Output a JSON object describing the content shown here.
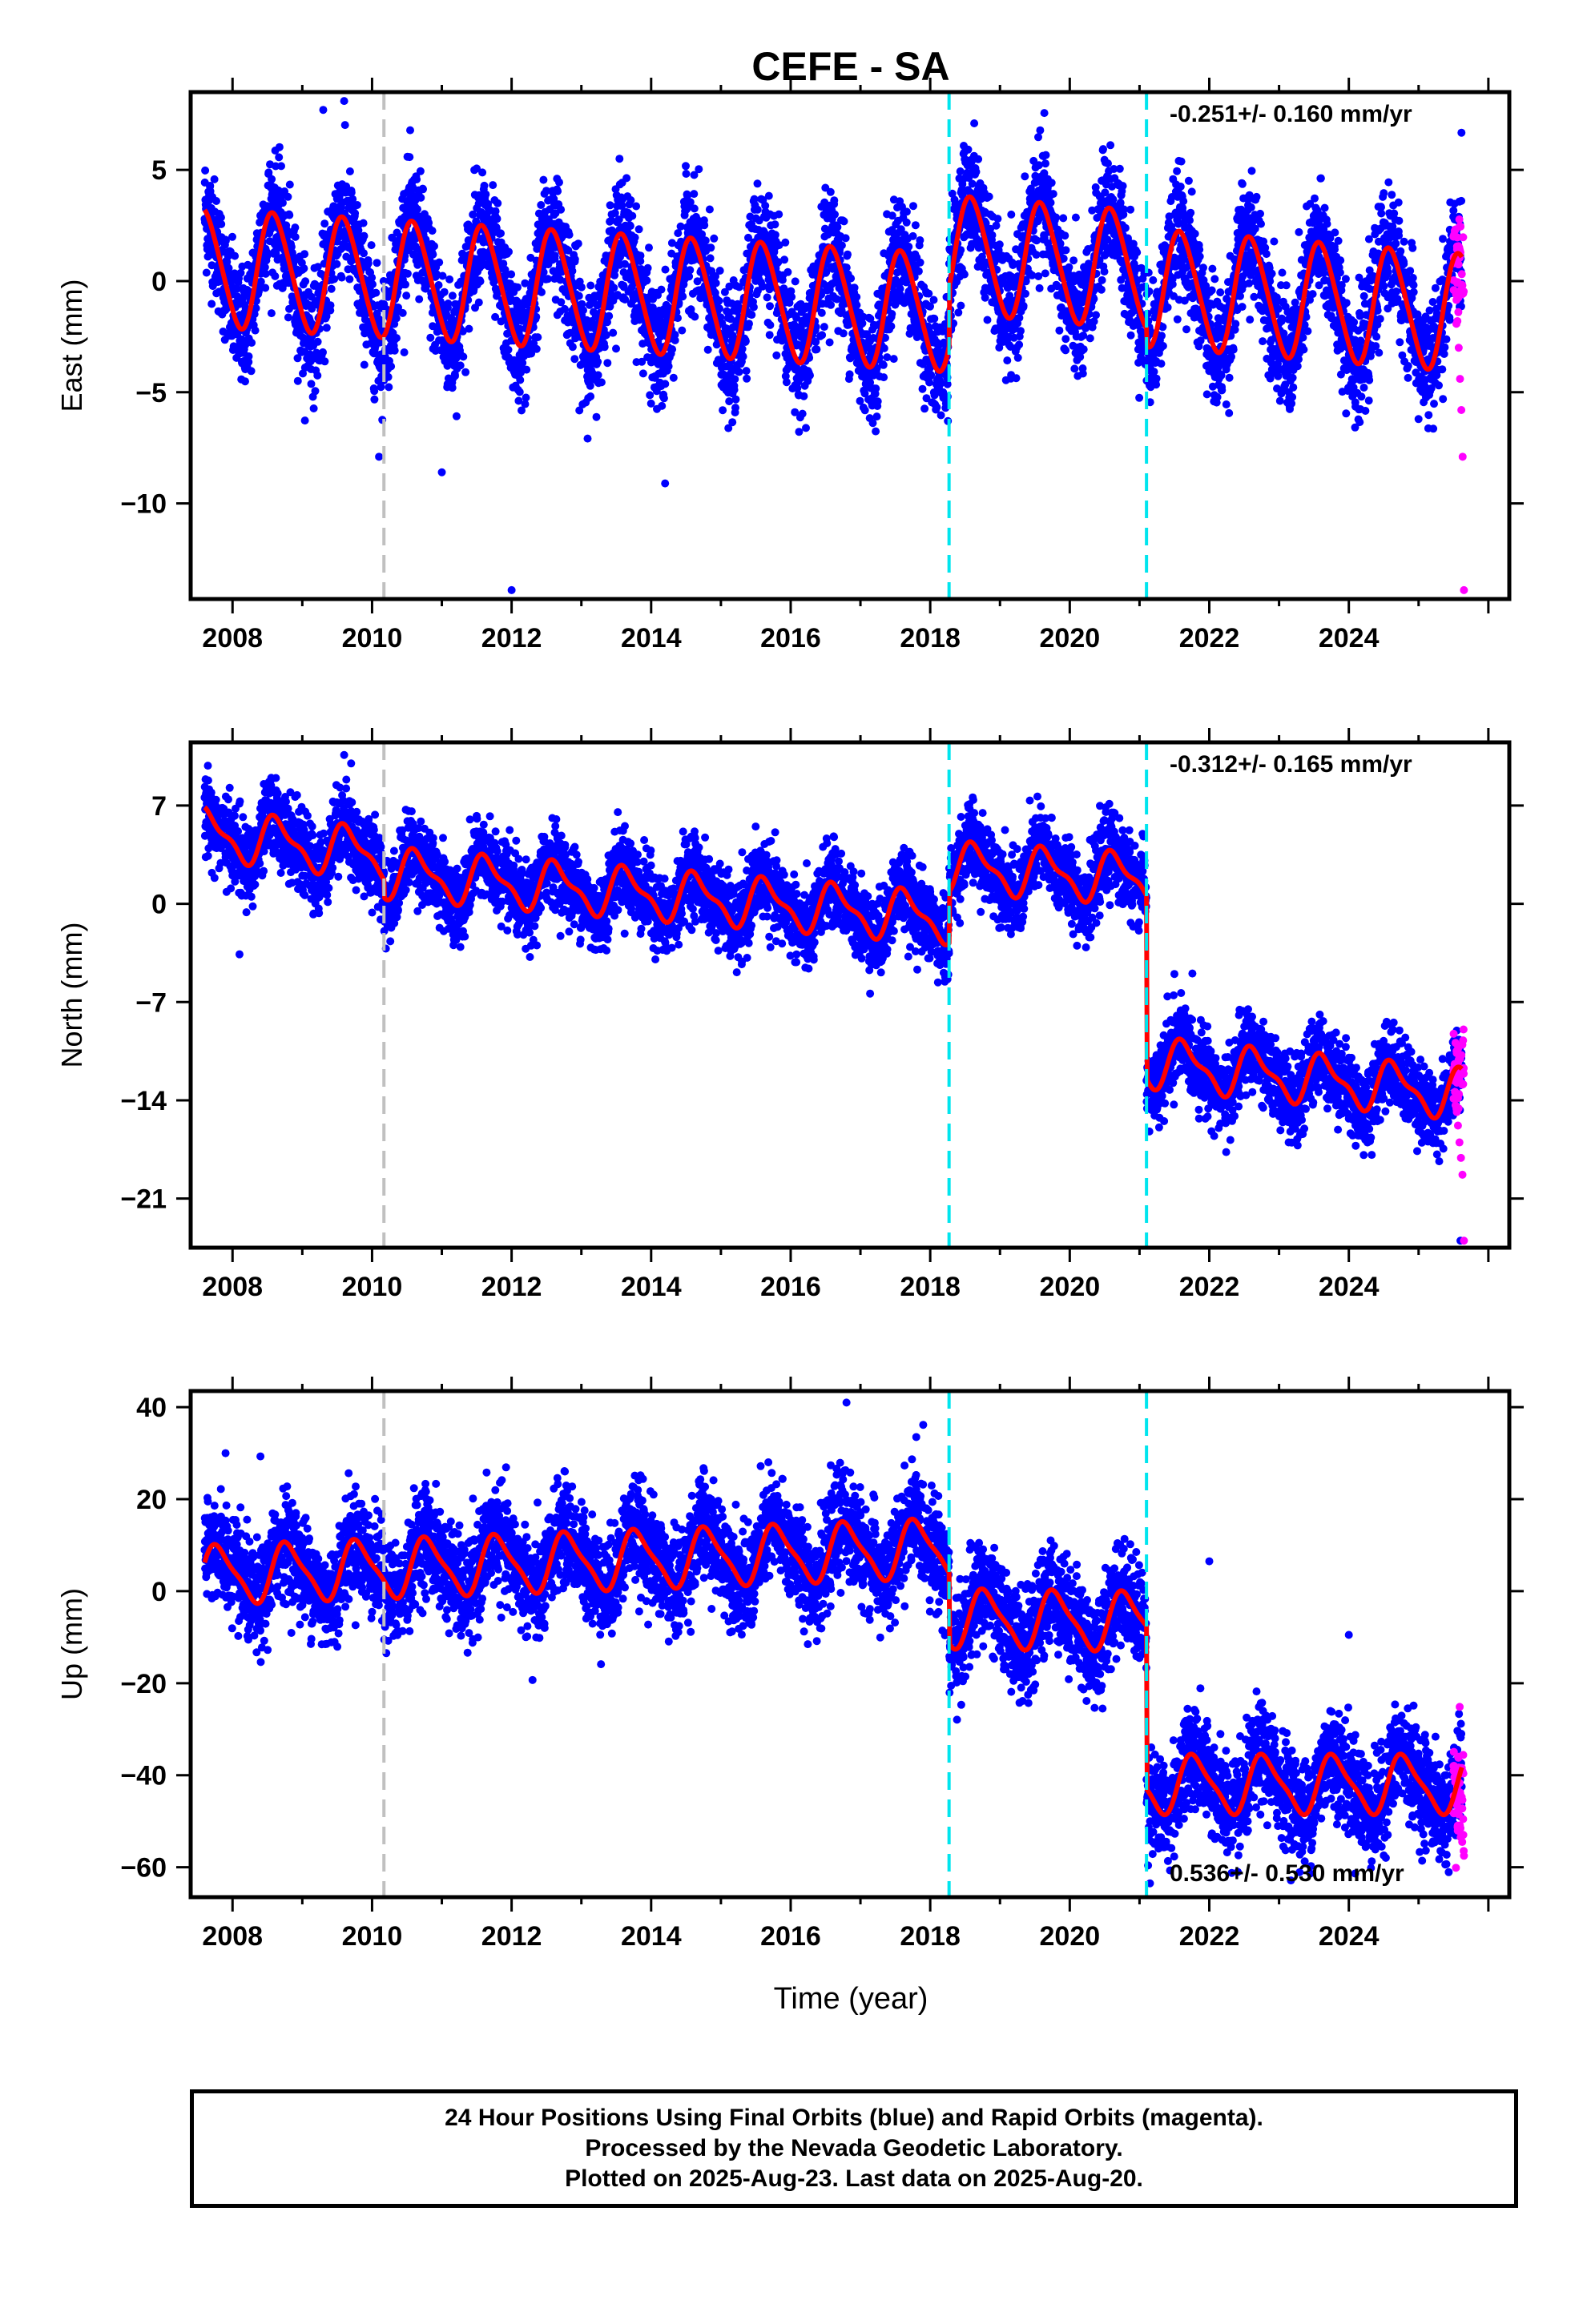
{
  "title": "CEFE - SA",
  "xlabel": "Time (year)",
  "footer": [
    "24 Hour Positions Using Final Orbits (blue) and Rapid Orbits (magenta).",
    "Processed by the Nevada Geodetic Laboratory.",
    "Plotted on 2025-Aug-23. Last data on 2025-Aug-20."
  ],
  "colors": {
    "final_orbits": "#0000ff",
    "rapid_orbits": "#ff00ff",
    "model_fit": "#ff0000",
    "equipment_change_line": "#c0c0c0",
    "offset_line": "#00e5ee"
  },
  "chart_data": [
    {
      "type": "scatter",
      "panel": "east",
      "ylabel": "East (mm)",
      "rate_text": "-0.251+/- 0.160 mm/yr",
      "xlim": [
        2007.4,
        2026.3
      ],
      "ylim": [
        -14.3,
        8.5
      ],
      "x_ticks": [
        2008,
        2010,
        2012,
        2014,
        2016,
        2018,
        2020,
        2022,
        2024
      ],
      "y_ticks": [
        5,
        0,
        -5,
        -10
      ],
      "y_tick_labels": [
        "5",
        "0",
        "−5",
        "−10"
      ],
      "vlines": [
        {
          "x": 2010.17,
          "kind": "equipment"
        },
        {
          "x": 2018.27,
          "kind": "offset"
        },
        {
          "x": 2021.1,
          "kind": "offset"
        }
      ],
      "model": {
        "start": 2007.6,
        "end": 2025.62,
        "segments": [
          {
            "from": 2007.6,
            "to": 2018.27,
            "level": 0.6,
            "slope": -0.19
          },
          {
            "from": 2018.27,
            "to": 2021.1,
            "level": 1.2,
            "slope": -0.25
          },
          {
            "from": 2021.1,
            "to": 2025.62,
            "level": -0.3,
            "slope": -0.25
          }
        ],
        "annual_amp": 2.6,
        "semiannual_amp": 0.3,
        "phase": 0.35
      },
      "scatter_sd": 1.3,
      "outliers": [
        [
          2009.3,
          7.7
        ],
        [
          2009.6,
          8.1
        ],
        [
          2012.0,
          -13.9
        ],
        [
          2014.2,
          -9.1
        ],
        [
          2010.1,
          -7.9
        ],
        [
          2011.0,
          -8.6
        ]
      ],
      "rapid": {
        "from": 2025.5,
        "to": 2025.65,
        "values": [
          2.0,
          0.8,
          -0.6,
          -1.8,
          -3.0,
          -4.4,
          -5.8,
          -7.9,
          -13.9
        ]
      }
    },
    {
      "type": "scatter",
      "panel": "north",
      "ylabel": "North (mm)",
      "rate_text": "-0.312+/- 0.165 mm/yr",
      "xlim": [
        2007.4,
        2026.3
      ],
      "ylim": [
        -24.5,
        11.5
      ],
      "x_ticks": [
        2008,
        2010,
        2012,
        2014,
        2016,
        2018,
        2020,
        2022,
        2024
      ],
      "y_ticks": [
        7,
        0,
        -7,
        -14,
        -21
      ],
      "y_tick_labels": [
        "7",
        "0",
        "−7",
        "−14",
        "−21"
      ],
      "vlines": [
        {
          "x": 2010.17,
          "kind": "equipment"
        },
        {
          "x": 2018.27,
          "kind": "offset"
        },
        {
          "x": 2021.1,
          "kind": "offset"
        }
      ],
      "model": {
        "start": 2007.6,
        "end": 2025.62,
        "segments": [
          {
            "from": 2007.6,
            "to": 2010.17,
            "level": 5.0,
            "slope": -0.6
          },
          {
            "from": 2010.17,
            "to": 2018.27,
            "level": 2.2,
            "slope": -0.4
          },
          {
            "from": 2018.27,
            "to": 2021.1,
            "level": 2.6,
            "slope": -0.3
          },
          {
            "from": 2021.1,
            "to": 2025.62,
            "level": -11.3,
            "slope": -0.5
          }
        ],
        "annual_amp": 1.6,
        "semiannual_amp": 0.6,
        "phase": 0.4
      },
      "scatter_sd": 1.4,
      "outliers": [
        [
          2008.1,
          -3.6
        ],
        [
          2009.6,
          10.6
        ],
        [
          2009.7,
          10.0
        ],
        [
          2025.6,
          -24.0
        ],
        [
          2021.4,
          -6.6
        ],
        [
          2021.5,
          -5.0
        ]
      ],
      "rapid": {
        "from": 2025.5,
        "to": 2025.65,
        "values": [
          -12.0,
          -13.4,
          -14.6,
          -15.8,
          -17.0,
          -18.1,
          -19.3,
          -24.0
        ]
      }
    },
    {
      "type": "scatter",
      "panel": "up",
      "ylabel": "Up (mm)",
      "rate_text": "0.536+/- 0.530 mm/yr",
      "xlim": [
        2007.4,
        2026.3
      ],
      "ylim": [
        -66.5,
        43.5
      ],
      "x_ticks": [
        2008,
        2010,
        2012,
        2014,
        2016,
        2018,
        2020,
        2022,
        2024
      ],
      "y_ticks": [
        40,
        20,
        0,
        -20,
        -40,
        -60
      ],
      "y_tick_labels": [
        "40",
        "20",
        "0",
        "−20",
        "−40",
        "−60"
      ],
      "vlines": [
        {
          "x": 2010.17,
          "kind": "equipment"
        },
        {
          "x": 2018.27,
          "kind": "offset"
        },
        {
          "x": 2021.1,
          "kind": "offset"
        }
      ],
      "model": {
        "start": 2007.6,
        "end": 2025.62,
        "segments": [
          {
            "from": 2007.6,
            "to": 2018.27,
            "level": 3.5,
            "slope": 0.55
          },
          {
            "from": 2018.27,
            "to": 2021.1,
            "level": -6.0,
            "slope": -0.2
          },
          {
            "from": 2021.1,
            "to": 2025.62,
            "level": -42.0,
            "slope": 0.0
          }
        ],
        "annual_amp": 6.0,
        "semiannual_amp": 1.5,
        "phase": 0.55
      },
      "scatter_sd": 5.5,
      "outliers": [
        [
          2016.8,
          41.0
        ],
        [
          2017.8,
          33.5
        ],
        [
          2007.9,
          30.0
        ],
        [
          2008.4,
          29.3
        ],
        [
          2022.0,
          6.5
        ],
        [
          2024.0,
          -9.5
        ],
        [
          2012.3,
          -19.3
        ],
        [
          2021.15,
          -63.5
        ]
      ],
      "rapid": {
        "from": 2025.5,
        "to": 2025.65,
        "values": [
          -38.0,
          -41.5,
          -45.0,
          -48.5,
          -51.5,
          -54.5,
          -57.5
        ]
      }
    }
  ]
}
